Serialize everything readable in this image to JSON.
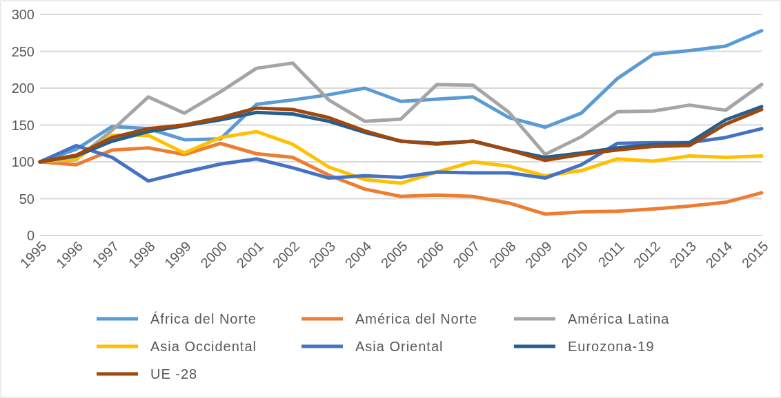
{
  "chart_data": {
    "type": "line",
    "categories": [
      "1995",
      "1996",
      "1997",
      "1998",
      "1999",
      "2000",
      "2001",
      "2002",
      "2003",
      "2004",
      "2005",
      "2006",
      "2007",
      "2008",
      "2009",
      "2010",
      "2011",
      "2012",
      "2013",
      "2014",
      "2015"
    ],
    "series": [
      {
        "name": "África del Norte",
        "color": "#5b9bd5",
        "values": [
          100,
          117,
          148,
          145,
          130,
          131,
          178,
          184,
          191,
          200,
          182,
          185,
          188,
          160,
          147,
          166,
          213,
          246,
          251,
          257,
          278
        ]
      },
      {
        "name": "América del Norte",
        "color": "#ed7d31",
        "values": [
          100,
          96,
          116,
          119,
          110,
          125,
          111,
          106,
          82,
          63,
          53,
          55,
          53,
          44,
          29,
          32,
          33,
          36,
          40,
          45,
          58
        ]
      },
      {
        "name": "América Latina",
        "color": "#a5a5a5",
        "values": [
          100,
          103,
          143,
          188,
          166,
          195,
          227,
          234,
          184,
          155,
          158,
          205,
          204,
          167,
          110,
          134,
          168,
          169,
          177,
          170,
          205
        ]
      },
      {
        "name": "Asia Occidental",
        "color": "#ffc000",
        "values": [
          100,
          104,
          136,
          136,
          112,
          133,
          141,
          124,
          93,
          76,
          71,
          86,
          100,
          94,
          81,
          88,
          104,
          101,
          108,
          106,
          108
        ]
      },
      {
        "name": "Asia Oriental",
        "color": "#4472c4",
        "values": [
          100,
          122,
          106,
          74,
          86,
          97,
          104,
          92,
          78,
          81,
          79,
          86,
          85,
          85,
          78,
          96,
          125,
          126,
          126,
          133,
          145
        ]
      },
      {
        "name": "Eurozona-19",
        "color": "#255e91",
        "values": [
          100,
          108,
          128,
          141,
          149,
          157,
          167,
          165,
          155,
          140,
          128,
          125,
          128,
          116,
          106,
          112,
          119,
          123,
          126,
          157,
          175
        ]
      },
      {
        "name": "UE -28",
        "color": "#9e480e",
        "values": [
          100,
          109,
          133,
          145,
          150,
          160,
          173,
          171,
          160,
          142,
          128,
          124,
          128,
          116,
          102,
          110,
          116,
          121,
          122,
          151,
          171
        ]
      }
    ],
    "ylim": [
      0,
      300
    ],
    "yticks": [
      0,
      50,
      100,
      150,
      200,
      250,
      300
    ],
    "grid": "y",
    "legend": "bottom",
    "marker": "none",
    "line_style": "solid"
  }
}
